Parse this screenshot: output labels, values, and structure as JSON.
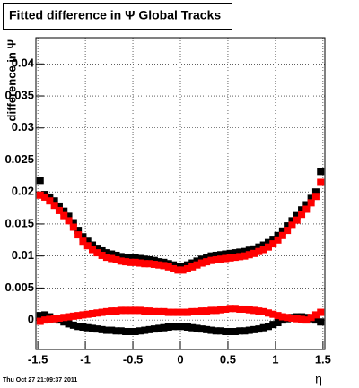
{
  "chart_data": {
    "type": "scatter",
    "title": "Fitted difference in Ψ   Global Tracks",
    "y_label": "difference in Ψ",
    "x_label": "η",
    "footer": "Thu Oct 27 21:09:37 2011",
    "xlim": [
      -1.52,
      1.52
    ],
    "xticks": [
      -1.5,
      -1,
      -0.5,
      0,
      0.5,
      1,
      1.5
    ],
    "ylim": [
      -0.0046,
      0.0441
    ],
    "yticks": [
      0,
      0.005,
      0.01,
      0.015,
      0.02,
      0.025,
      0.03,
      0.035,
      0.04
    ],
    "grid": true,
    "x": [
      -1.475,
      -1.425,
      -1.375,
      -1.325,
      -1.275,
      -1.225,
      -1.175,
      -1.125,
      -1.075,
      -1.025,
      -0.975,
      -0.925,
      -0.875,
      -0.825,
      -0.775,
      -0.725,
      -0.675,
      -0.625,
      -0.575,
      -0.525,
      -0.475,
      -0.425,
      -0.375,
      -0.325,
      -0.275,
      -0.225,
      -0.175,
      -0.125,
      -0.075,
      -0.025,
      0.025,
      0.075,
      0.125,
      0.175,
      0.225,
      0.275,
      0.325,
      0.375,
      0.425,
      0.475,
      0.525,
      0.575,
      0.625,
      0.675,
      0.725,
      0.775,
      0.825,
      0.875,
      0.925,
      0.975,
      1.025,
      1.075,
      1.125,
      1.175,
      1.225,
      1.275,
      1.325,
      1.375,
      1.425,
      1.475
    ],
    "series": [
      {
        "color": "#000000",
        "values": [
          0.0218,
          0.0196,
          0.0192,
          0.0186,
          0.0178,
          0.017,
          0.0162,
          0.0152,
          0.014,
          0.013,
          0.0123,
          0.0117,
          0.0112,
          0.0108,
          0.0105,
          0.0103,
          0.0101,
          0.0099,
          0.0098,
          0.0097,
          0.0097,
          0.0096,
          0.0095,
          0.0094,
          0.0093,
          0.0091,
          0.009,
          0.0088,
          0.0086,
          0.0083,
          0.0083,
          0.0086,
          0.0089,
          0.0092,
          0.0095,
          0.0098,
          0.01,
          0.0101,
          0.0102,
          0.0103,
          0.0104,
          0.0105,
          0.0106,
          0.0107,
          0.0109,
          0.0111,
          0.0114,
          0.0117,
          0.0121,
          0.0126,
          0.0132,
          0.0139,
          0.0147,
          0.0155,
          0.0163,
          0.0172,
          0.018,
          0.019,
          0.02,
          0.0232
        ]
      },
      {
        "color": "#ff0000",
        "values": [
          0.0195,
          0.0192,
          0.0186,
          0.0179,
          0.0171,
          0.0163,
          0.0155,
          0.0145,
          0.0133,
          0.0123,
          0.0116,
          0.011,
          0.0105,
          0.0101,
          0.0098,
          0.0096,
          0.0094,
          0.0092,
          0.0091,
          0.009,
          0.009,
          0.0089,
          0.0088,
          0.0088,
          0.0087,
          0.0086,
          0.0085,
          0.0083,
          0.008,
          0.0078,
          0.0078,
          0.008,
          0.0083,
          0.0086,
          0.0089,
          0.0091,
          0.0093,
          0.0094,
          0.0095,
          0.0096,
          0.0097,
          0.0098,
          0.0099,
          0.01,
          0.0102,
          0.0104,
          0.0107,
          0.011,
          0.0114,
          0.0119,
          0.0125,
          0.0132,
          0.014,
          0.0148,
          0.0156,
          0.0165,
          0.0173,
          0.0183,
          0.0193,
          0.0215
        ]
      },
      {
        "color": "#000000",
        "values": [
          0.0007,
          0.0008,
          0.0005,
          0.0002,
          0.0,
          -0.0003,
          -0.0006,
          -0.0008,
          -0.001,
          -0.0011,
          -0.0012,
          -0.0013,
          -0.0014,
          -0.0015,
          -0.0016,
          -0.0016,
          -0.0017,
          -0.0017,
          -0.0018,
          -0.0018,
          -0.0018,
          -0.0017,
          -0.0016,
          -0.0015,
          -0.0014,
          -0.0013,
          -0.0012,
          -0.0011,
          -0.001,
          -0.001,
          -0.001,
          -0.0011,
          -0.0012,
          -0.0013,
          -0.0014,
          -0.0015,
          -0.0016,
          -0.0017,
          -0.0017,
          -0.0018,
          -0.0018,
          -0.0018,
          -0.0017,
          -0.0017,
          -0.0016,
          -0.0015,
          -0.0014,
          -0.0012,
          -0.001,
          -0.0007,
          -0.0004,
          0.0,
          0.0002,
          0.0004,
          0.0005,
          0.0005,
          0.0004,
          0.0002,
          0.0,
          -0.0003
        ]
      },
      {
        "color": "#ff0000",
        "values": [
          -0.0002,
          0.0,
          0.0001,
          0.0002,
          0.0003,
          0.0004,
          0.0005,
          0.0006,
          0.0007,
          0.0008,
          0.0009,
          0.001,
          0.0011,
          0.0012,
          0.0013,
          0.0014,
          0.0014,
          0.0015,
          0.0015,
          0.0015,
          0.0015,
          0.0015,
          0.0014,
          0.0014,
          0.0013,
          0.0013,
          0.0013,
          0.0012,
          0.0012,
          0.0012,
          0.0012,
          0.0012,
          0.0013,
          0.0013,
          0.0014,
          0.0014,
          0.0015,
          0.0015,
          0.0016,
          0.0017,
          0.0018,
          0.0018,
          0.0017,
          0.0017,
          0.0016,
          0.0015,
          0.0014,
          0.0013,
          0.0011,
          0.0009,
          0.0007,
          0.0005,
          0.0004,
          0.0003,
          0.0002,
          0.0001,
          0.0,
          0.0004,
          0.0008,
          0.0012
        ]
      }
    ]
  }
}
